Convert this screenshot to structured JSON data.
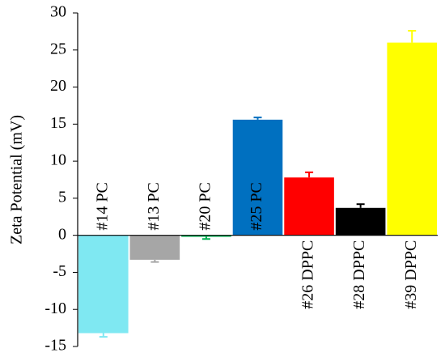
{
  "chart_data": {
    "type": "bar",
    "y_label": "Zeta Potential (mV)",
    "categories": [
      "#14 PC",
      "#13 PC",
      "#20 PC",
      "#25 PC",
      "#26 DPPC",
      "#28 DPPC",
      "#39 DPPC"
    ],
    "values": [
      -13.2,
      -3.3,
      -0.2,
      15.6,
      7.8,
      3.7,
      26.0
    ],
    "errors": [
      0.5,
      0.3,
      0.3,
      0.3,
      0.7,
      0.5,
      1.6
    ],
    "colors": [
      "#7fe8f2",
      "#a6a6a6",
      "#00b050",
      "#0070c0",
      "#ff0000",
      "#000000",
      "#ffff00"
    ],
    "ylim": [
      -15,
      30
    ],
    "yticks": [
      -15,
      -10,
      -5,
      0,
      5,
      10,
      15,
      20,
      25,
      30
    ],
    "grid": false
  }
}
